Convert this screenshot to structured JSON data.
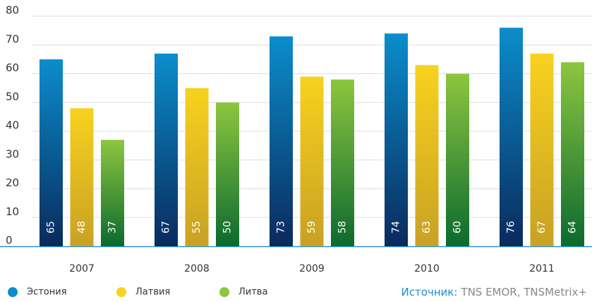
{
  "chart_data": {
    "type": "bar",
    "categories": [
      "2007",
      "2008",
      "2009",
      "2010",
      "2011"
    ],
    "series": [
      {
        "name": "Эстония",
        "color": "#0b8dcc",
        "values": [
          65,
          67,
          73,
          74,
          76
        ]
      },
      {
        "name": "Латвия",
        "color": "#f7d21e",
        "values": [
          48,
          55,
          59,
          63,
          67
        ]
      },
      {
        "name": "Литва",
        "color": "#8dc63f",
        "values": [
          37,
          50,
          58,
          60,
          64
        ]
      }
    ],
    "ylim": [
      0,
      80
    ],
    "yticks": [
      0,
      10,
      20,
      30,
      40,
      50,
      60,
      70,
      80
    ],
    "grid": true,
    "source_label": "Источник:",
    "source": "TNS EMOR, TNSMetrix+"
  }
}
